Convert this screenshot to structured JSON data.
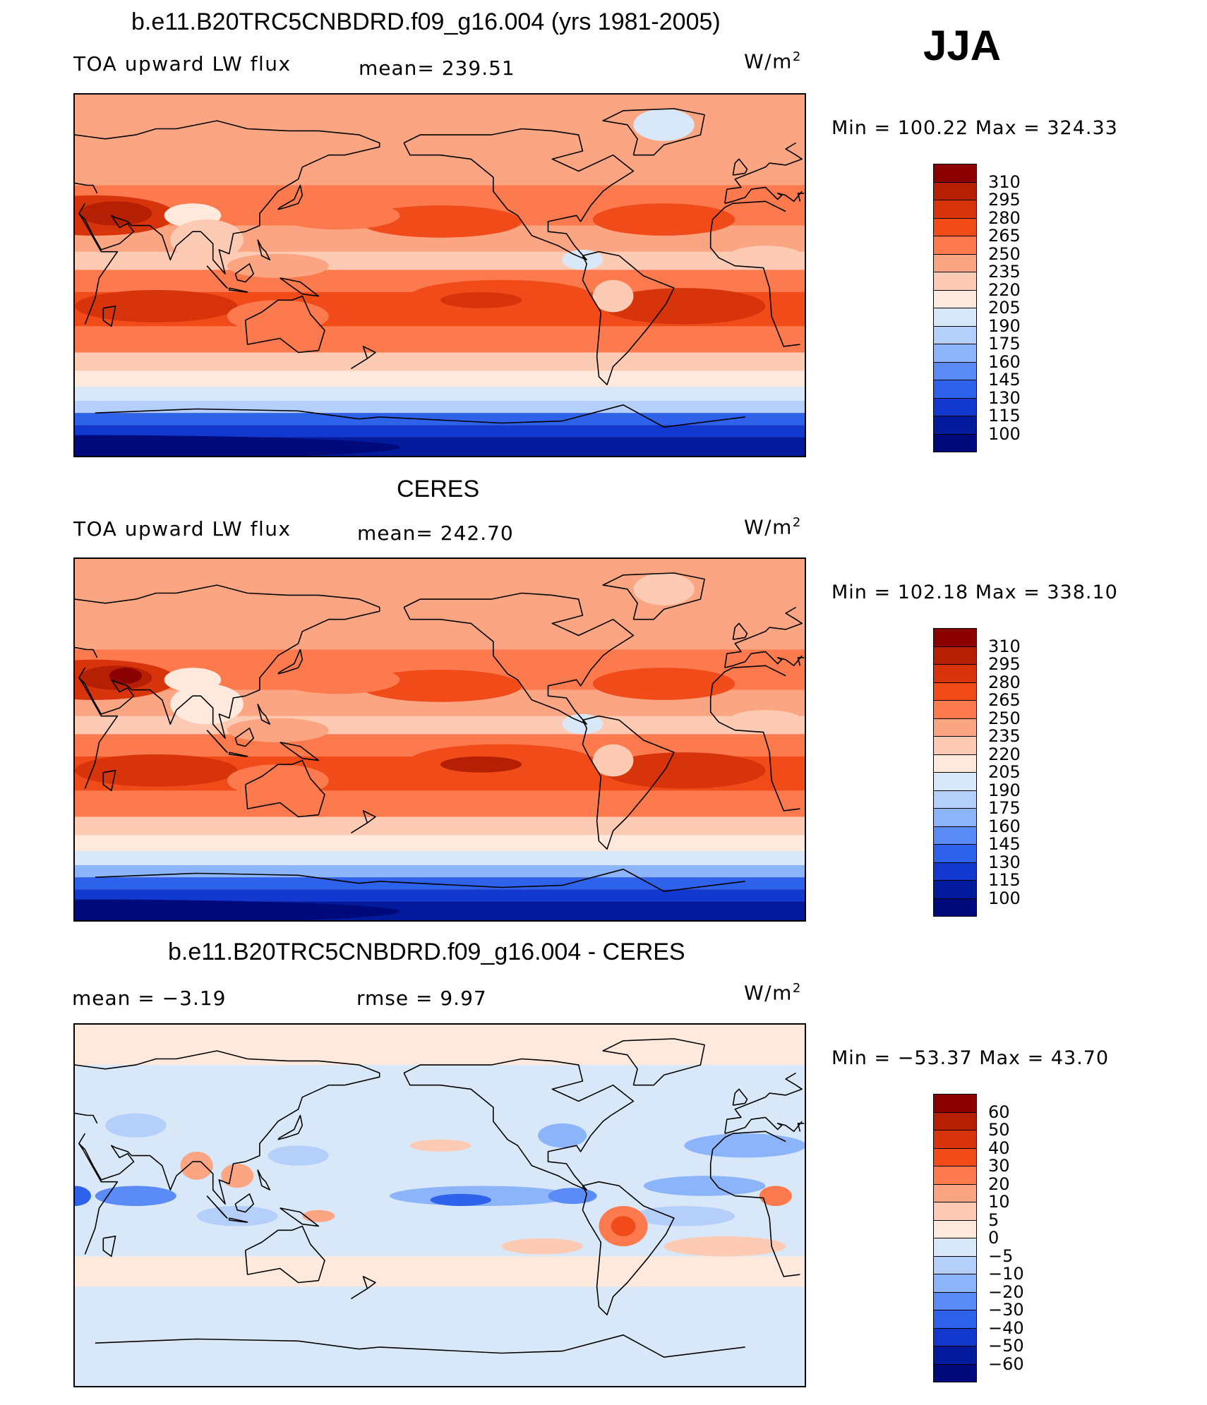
{
  "season": "JJA",
  "panels": [
    {
      "title": "b.e11.B20TRC5CNBDRD.f09_g16.004 (yrs 1981-2005)",
      "variable": "TOA upward LW flux",
      "stat_text": "mean= 239.51",
      "units": "W/m",
      "units_exp": "2",
      "minmax_text": "Min  =  100.22  Max  =  324.33",
      "map_kind": "model"
    },
    {
      "title": "CERES",
      "variable": "TOA upward LW flux",
      "stat_text": "mean= 242.70",
      "units": "W/m",
      "units_exp": "2",
      "minmax_text": "Min  =  102.18  Max  =  338.10",
      "map_kind": "obs"
    },
    {
      "title": "b.e11.B20TRC5CNBDRD.f09_g16.004 - CERES",
      "variable": "mean =    −3.19",
      "stat_text": "rmse =     9.97",
      "units": "W/m",
      "units_exp": "2",
      "minmax_text": "Min  =  −53.37  Max  =    43.70",
      "map_kind": "diff"
    }
  ],
  "chart_data": [
    {
      "type": "heatmap",
      "title": "b.e11.B20TRC5CNBDRD.f09_g16.004 (yrs 1981-2005)",
      "variable": "TOA upward LW flux",
      "units": "W/m2",
      "mean": 239.51,
      "min": 100.22,
      "max": 324.33,
      "colorbar_levels": [
        "310",
        "295",
        "280",
        "265",
        "250",
        "235",
        "220",
        "205",
        "190",
        "175",
        "160",
        "145",
        "130",
        "115",
        "100"
      ],
      "colorbar_colors": [
        "#8b0000",
        "#b51f04",
        "#d8340c",
        "#f24b1a",
        "#fc7a4e",
        "#fca582",
        "#fdcbb4",
        "#fee9dc",
        "#d9e8f8",
        "#b3cffa",
        "#8cb4fb",
        "#5a8bf6",
        "#2f62eb",
        "#1238d0",
        "#031a9c",
        "#000a7a"
      ]
    },
    {
      "type": "heatmap",
      "title": "CERES",
      "variable": "TOA upward LW flux",
      "units": "W/m2",
      "mean": 242.7,
      "min": 102.18,
      "max": 338.1,
      "colorbar_levels": [
        "310",
        "295",
        "280",
        "265",
        "250",
        "235",
        "220",
        "205",
        "190",
        "175",
        "160",
        "145",
        "130",
        "115",
        "100"
      ],
      "colorbar_colors": [
        "#8b0000",
        "#b51f04",
        "#d8340c",
        "#f24b1a",
        "#fc7a4e",
        "#fca582",
        "#fdcbb4",
        "#fee9dc",
        "#d9e8f8",
        "#b3cffa",
        "#8cb4fb",
        "#5a8bf6",
        "#2f62eb",
        "#1238d0",
        "#031a9c",
        "#000a7a"
      ]
    },
    {
      "type": "heatmap",
      "title": "b.e11.B20TRC5CNBDRD.f09_g16.004 - CERES",
      "units": "W/m2",
      "mean": -3.19,
      "rmse": 9.97,
      "min": -53.37,
      "max": 43.7,
      "colorbar_levels": [
        "60",
        "50",
        "40",
        "30",
        "20",
        "10",
        "5",
        "0",
        "−5",
        "−10",
        "−20",
        "−30",
        "−40",
        "−50",
        "−60"
      ],
      "colorbar_colors": [
        "#8b0000",
        "#b51f04",
        "#d8340c",
        "#f24b1a",
        "#fc7a4e",
        "#fca582",
        "#fdcbb4",
        "#fee9dc",
        "#d9e8f8",
        "#b3cffa",
        "#8cb4fb",
        "#5a8bf6",
        "#2f62eb",
        "#1238d0",
        "#031a9c",
        "#000a7a"
      ]
    }
  ]
}
